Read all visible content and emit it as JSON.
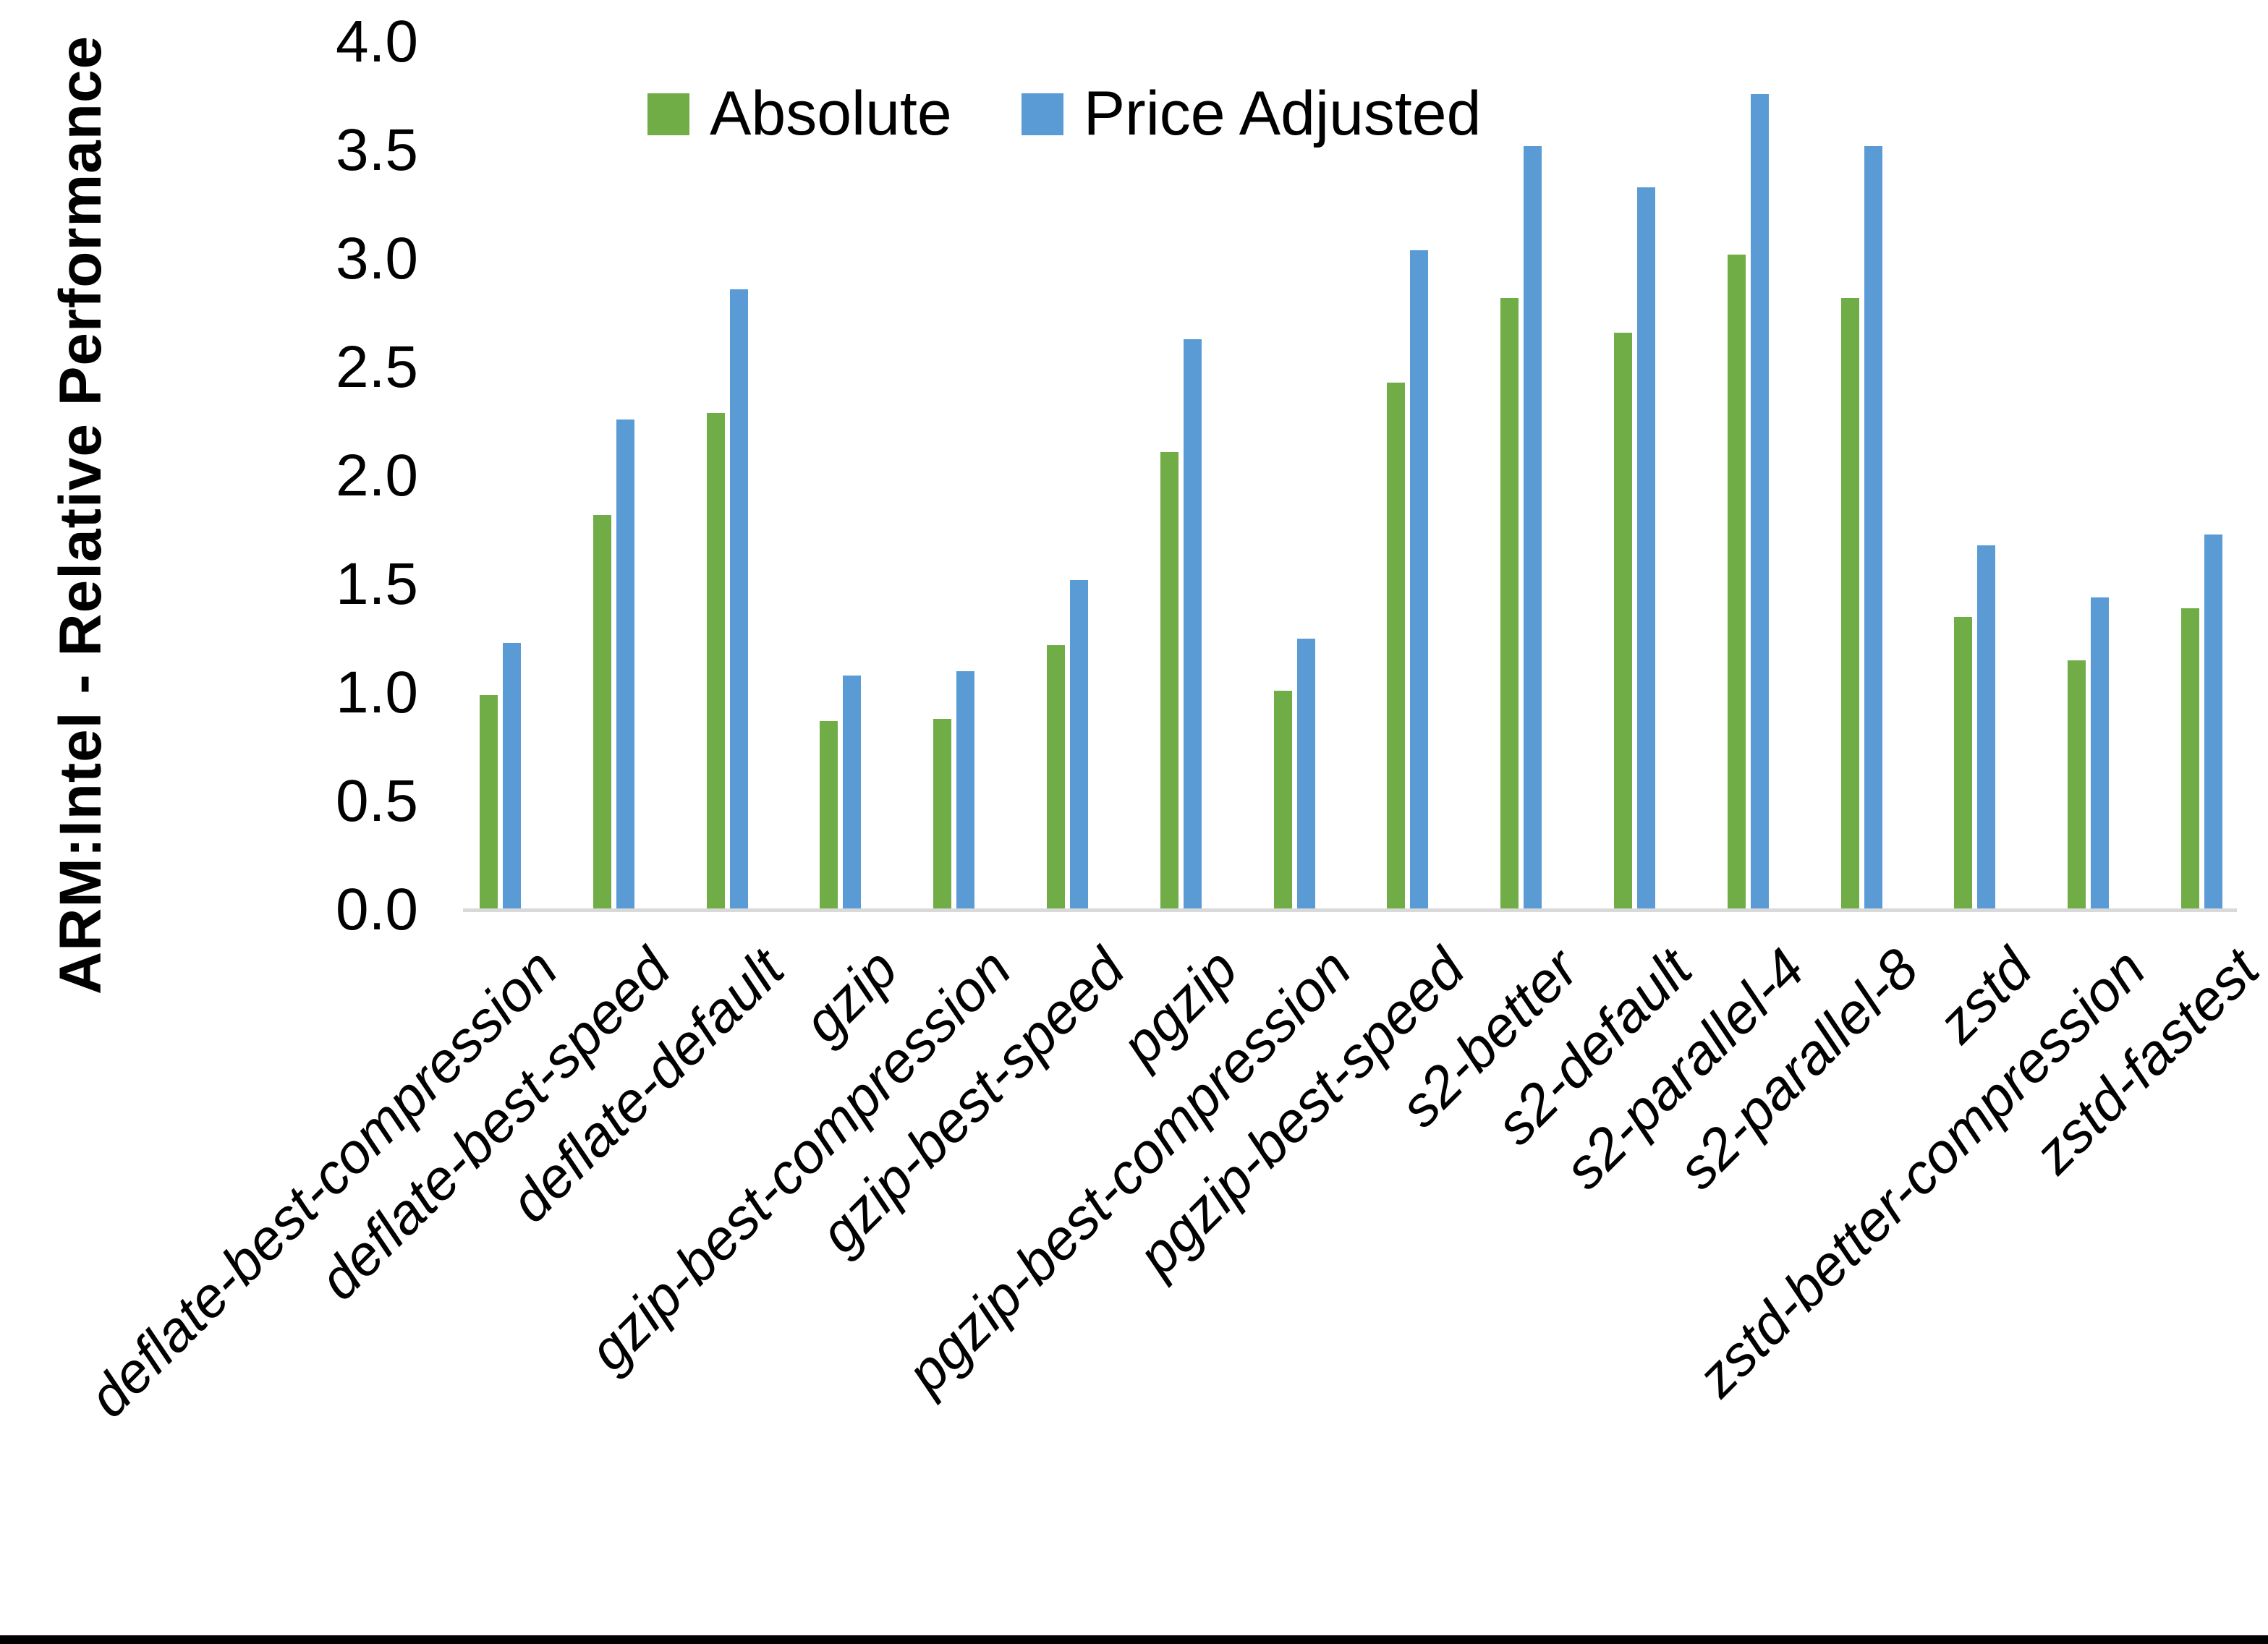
{
  "chart_data": {
    "type": "bar",
    "title": "",
    "ylabel": "ARM:Intel - Relative Performance",
    "xlabel": "",
    "ylim": [
      0.0,
      4.0
    ],
    "ytick_step": 0.5,
    "grid": false,
    "legend_position": "top-center",
    "categories": [
      "deflate-best-compression",
      "deflate-best-speed",
      "deflate-default",
      "gzip",
      "gzip-best-compression",
      "gzip-best-speed",
      "pgzip",
      "pgzip-best-compression",
      "pgzip-best-speed",
      "s2-better",
      "s2-default",
      "s2-parallel-4",
      "s2-parallel-8",
      "zstd",
      "zstd-better-compression",
      "zstd-fastest"
    ],
    "series": [
      {
        "name": "Absolute",
        "color": "#70AD47",
        "values": [
          0.99,
          1.82,
          2.29,
          0.87,
          0.88,
          1.22,
          2.11,
          1.01,
          2.43,
          2.82,
          2.66,
          3.02,
          2.82,
          1.35,
          1.15,
          1.39
        ]
      },
      {
        "name": "Price Adjusted",
        "color": "#5B9BD5",
        "values": [
          1.23,
          2.26,
          2.86,
          1.08,
          1.1,
          1.52,
          2.63,
          1.25,
          3.04,
          3.52,
          3.33,
          3.76,
          3.52,
          1.68,
          1.44,
          1.73
        ]
      }
    ]
  },
  "colors": {
    "axis_line": "#D9D9D9",
    "text": "#000000",
    "bottom_border": "#000000"
  }
}
